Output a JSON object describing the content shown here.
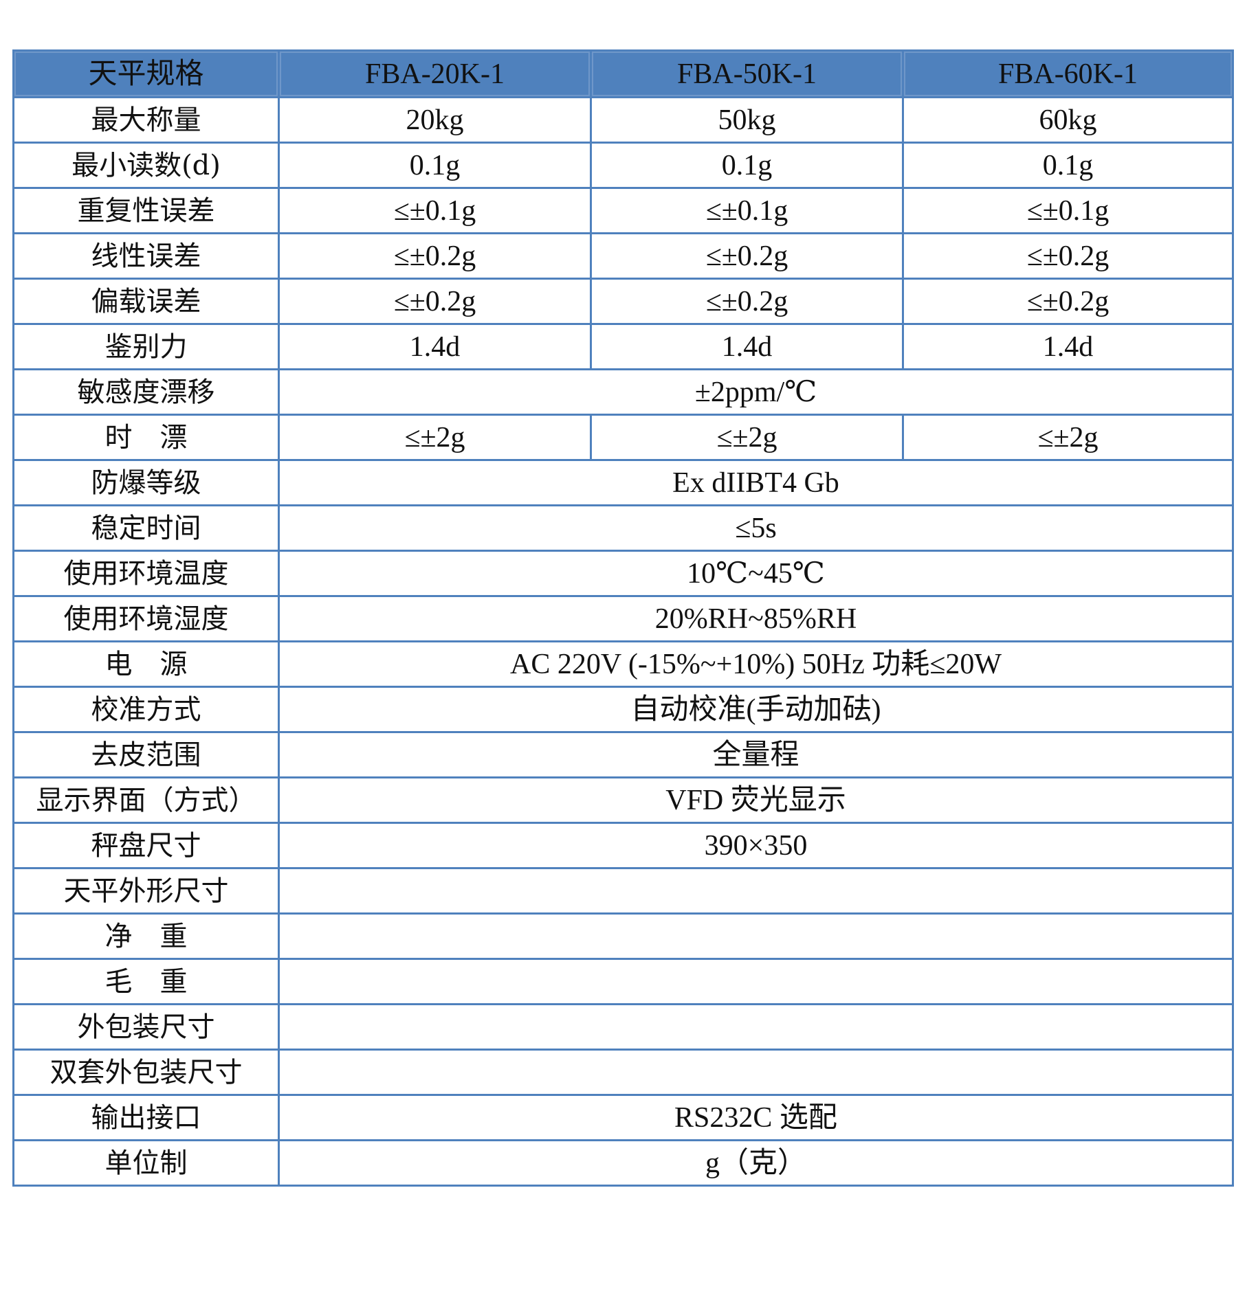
{
  "table": {
    "header": [
      "天平规格",
      "FBA-20K-1",
      "FBA-50K-1",
      "FBA-60K-1"
    ],
    "rows": [
      {
        "label": "最大称量",
        "values": [
          "20kg",
          "50kg",
          "60kg"
        ]
      },
      {
        "label": "最小读数(d)",
        "values": [
          "0.1g",
          "0.1g",
          "0.1g"
        ]
      },
      {
        "label": "重复性误差",
        "values": [
          "≤±0.1g",
          "≤±0.1g",
          "≤±0.1g"
        ]
      },
      {
        "label": "线性误差",
        "values": [
          "≤±0.2g",
          "≤±0.2g",
          "≤±0.2g"
        ]
      },
      {
        "label": "偏载误差",
        "values": [
          "≤±0.2g",
          "≤±0.2g",
          "≤±0.2g"
        ]
      },
      {
        "label": "鉴别力",
        "values": [
          "1.4d",
          "1.4d",
          "1.4d"
        ]
      },
      {
        "label": "敏感度漂移",
        "span": "±2ppm/℃"
      },
      {
        "label": "时　漂",
        "values": [
          "≤±2g",
          "≤±2g",
          "≤±2g"
        ]
      },
      {
        "label": "防爆等级",
        "span": "Ex dIIBT4 Gb"
      },
      {
        "label": "稳定时间",
        "span": "≤5s"
      },
      {
        "label": "使用环境温度",
        "span": "10℃~45℃"
      },
      {
        "label": "使用环境湿度",
        "span": "20%RH~85%RH"
      },
      {
        "label": "电　源",
        "span": "AC 220V (-15%~+10%) 50Hz  功耗≤20W"
      },
      {
        "label": "校准方式",
        "span": "自动校准(手动加砝)"
      },
      {
        "label": "去皮范围",
        "span": "全量程"
      },
      {
        "label": "显示界面（方式）",
        "span": "VFD 荧光显示"
      },
      {
        "label": "秤盘尺寸",
        "span": "390×350"
      },
      {
        "label": "天平外形尺寸",
        "span": ""
      },
      {
        "label": "净　重",
        "span": ""
      },
      {
        "label": "毛　重",
        "span": ""
      },
      {
        "label": "外包装尺寸",
        "span": ""
      },
      {
        "label": "双套外包装尺寸",
        "span": ""
      },
      {
        "label": "输出接口",
        "span": "RS232C 选配"
      },
      {
        "label": "单位制",
        "span": "g（克）"
      }
    ]
  }
}
